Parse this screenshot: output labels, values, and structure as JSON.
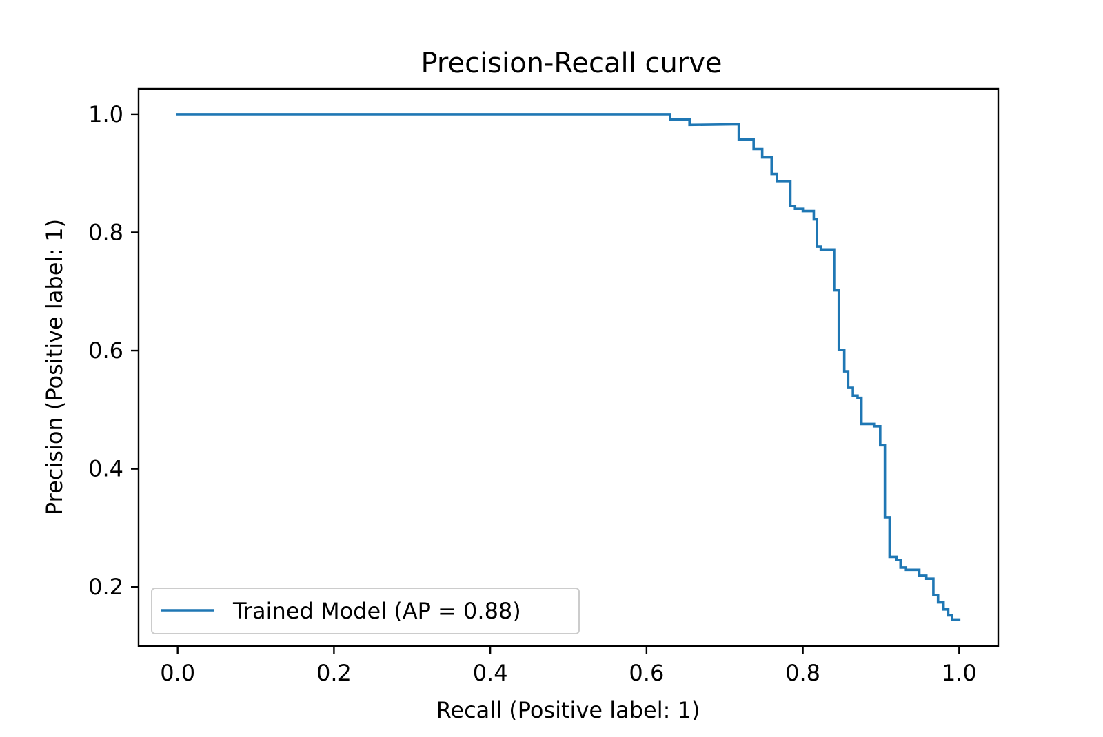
{
  "chart_data": {
    "type": "line",
    "title": "Precision-Recall curve",
    "xlabel": "Recall (Positive label: 1)",
    "ylabel": "Precision (Positive label: 1)",
    "xlim": [
      -0.05,
      1.05
    ],
    "ylim": [
      0.1,
      1.043
    ],
    "xticks": [
      "0.0",
      "0.2",
      "0.4",
      "0.6",
      "0.8",
      "1.0"
    ],
    "yticks": [
      "0.2",
      "0.4",
      "0.6",
      "0.8",
      "1.0"
    ],
    "grid": false,
    "legend_position": "lower-left",
    "step": true,
    "series": [
      {
        "name": "Trained Model (AP = 0.88)",
        "color": "#1f77b4",
        "points": [
          [
            0.0,
            1.0
          ],
          [
            0.63,
            1.0
          ],
          [
            0.63,
            0.991
          ],
          [
            0.655,
            0.991
          ],
          [
            0.655,
            0.982
          ],
          [
            0.718,
            0.983
          ],
          [
            0.718,
            0.957
          ],
          [
            0.737,
            0.957
          ],
          [
            0.737,
            0.941
          ],
          [
            0.748,
            0.941
          ],
          [
            0.748,
            0.927
          ],
          [
            0.76,
            0.927
          ],
          [
            0.76,
            0.899
          ],
          [
            0.767,
            0.899
          ],
          [
            0.767,
            0.887
          ],
          [
            0.784,
            0.887
          ],
          [
            0.784,
            0.845
          ],
          [
            0.79,
            0.845
          ],
          [
            0.79,
            0.84
          ],
          [
            0.8,
            0.84
          ],
          [
            0.8,
            0.836
          ],
          [
            0.814,
            0.836
          ],
          [
            0.814,
            0.822
          ],
          [
            0.818,
            0.822
          ],
          [
            0.818,
            0.776
          ],
          [
            0.823,
            0.776
          ],
          [
            0.823,
            0.771
          ],
          [
            0.84,
            0.771
          ],
          [
            0.84,
            0.702
          ],
          [
            0.846,
            0.702
          ],
          [
            0.846,
            0.601
          ],
          [
            0.853,
            0.601
          ],
          [
            0.853,
            0.565
          ],
          [
            0.858,
            0.565
          ],
          [
            0.858,
            0.537
          ],
          [
            0.864,
            0.537
          ],
          [
            0.864,
            0.524
          ],
          [
            0.87,
            0.524
          ],
          [
            0.87,
            0.52
          ],
          [
            0.875,
            0.52
          ],
          [
            0.875,
            0.476
          ],
          [
            0.891,
            0.476
          ],
          [
            0.891,
            0.472
          ],
          [
            0.899,
            0.472
          ],
          [
            0.899,
            0.44
          ],
          [
            0.905,
            0.44
          ],
          [
            0.905,
            0.318
          ],
          [
            0.911,
            0.318
          ],
          [
            0.911,
            0.251
          ],
          [
            0.92,
            0.251
          ],
          [
            0.92,
            0.246
          ],
          [
            0.925,
            0.246
          ],
          [
            0.925,
            0.233
          ],
          [
            0.932,
            0.233
          ],
          [
            0.932,
            0.229
          ],
          [
            0.949,
            0.229
          ],
          [
            0.949,
            0.219
          ],
          [
            0.958,
            0.219
          ],
          [
            0.958,
            0.214
          ],
          [
            0.967,
            0.214
          ],
          [
            0.967,
            0.186
          ],
          [
            0.973,
            0.186
          ],
          [
            0.973,
            0.174
          ],
          [
            0.98,
            0.174
          ],
          [
            0.98,
            0.162
          ],
          [
            0.986,
            0.162
          ],
          [
            0.986,
            0.152
          ],
          [
            0.991,
            0.152
          ],
          [
            0.991,
            0.145
          ],
          [
            1.0,
            0.145
          ]
        ]
      }
    ]
  }
}
